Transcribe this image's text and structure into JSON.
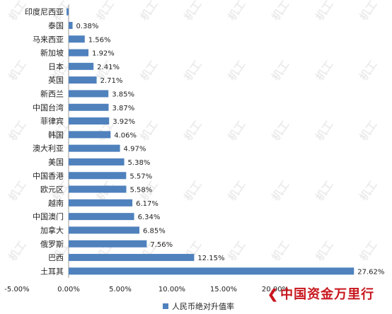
{
  "chart_data": {
    "type": "bar",
    "orientation": "horizontal",
    "categories": [
      "印度尼西亚",
      "泰国",
      "马来西亚",
      "新加坡",
      "日本",
      "英国",
      "新西兰",
      "中国台湾",
      "菲律宾",
      "韩国",
      "澳大利亚",
      "美国",
      "中国香港",
      "欧元区",
      "越南",
      "中国澳门",
      "加拿大",
      "俄罗斯",
      "巴西",
      "土耳其"
    ],
    "series": [
      {
        "name": "人民币绝对升值率",
        "values": [
          -0.2,
          0.38,
          1.56,
          1.92,
          2.41,
          2.71,
          3.85,
          3.87,
          3.92,
          4.06,
          4.97,
          5.38,
          5.57,
          5.58,
          6.17,
          6.34,
          6.85,
          7.56,
          12.15,
          27.62
        ],
        "labels": [
          "",
          "0.38%",
          "1.56%",
          "1.92%",
          "2.41%",
          "2.71%",
          "3.85%",
          "3.87%",
          "3.92%",
          "4.06%",
          "4.97%",
          "5.38%",
          "5.57%",
          "5.58%",
          "6.17%",
          "6.34%",
          "6.85%",
          "7.56%",
          "12.15%",
          "27.62%"
        ]
      }
    ],
    "xlim": [
      -5,
      30
    ],
    "x_ticks": [
      -5,
      0,
      5,
      10,
      15,
      20
    ],
    "x_tick_labels": [
      "-5.00%",
      "0.00%",
      "5.00%",
      "10.00%",
      "15.00%",
      "20.00%"
    ],
    "legend_position": "bottom",
    "bar_color": "#4f81bd"
  },
  "legend": {
    "label": "人民币绝对升值率",
    "color": "#4f81bd"
  },
  "logo": {
    "text": "中国资金万里行"
  },
  "watermark": {
    "text": "机工"
  }
}
